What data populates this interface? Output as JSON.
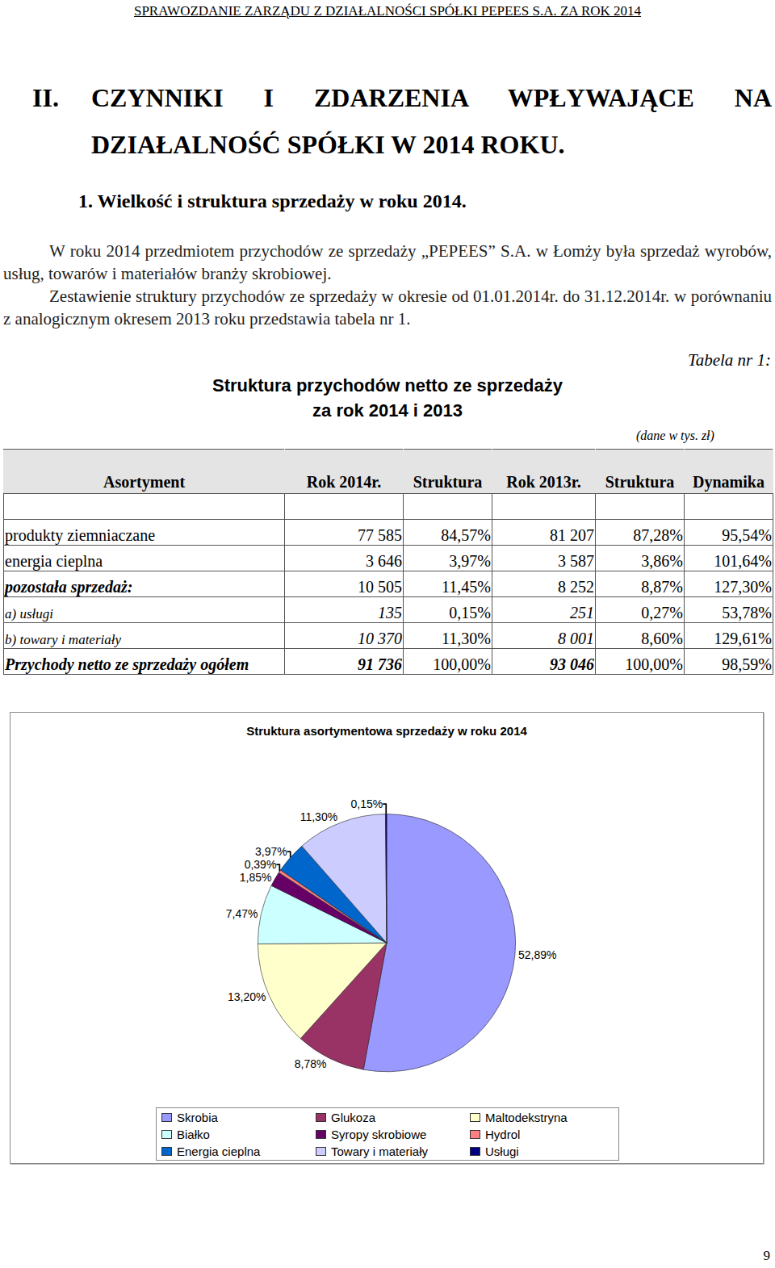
{
  "header": "SPRAWOZDANIE ZARZĄDU Z DZIAŁALNOŚCI SPÓŁKI PEPEES S.A. ZA ROK 2014",
  "section": {
    "number": "II.",
    "title": "CZYNNIKI I ZDARZENIA WPŁYWAJĄCE NA DZIAŁALNOŚĆ SPÓŁKI W 2014 ROKU."
  },
  "subsection": "1. Wielkość i struktura sprzedaży w roku 2014.",
  "paragraphs": [
    "W roku 2014 przedmiotem przychodów ze sprzedaży „PEPEES” S.A. w Łomży była sprzedaż wyrobów, usług, towarów i materiałów branży skrobiowej.",
    "Zestawienie struktury przychodów ze sprzedaży w okresie od 01.01.2014r. do 31.12.2014r. w porównaniu z analogicznym okresem 2013 roku przedstawia tabela nr 1."
  ],
  "table": {
    "caption": "Tabela nr 1:",
    "title": [
      "Struktura przychodów netto ze sprzedaży",
      "za rok 2014 i 2013"
    ],
    "unit": "(dane w tys. zł)",
    "columns": [
      "Asortyment",
      "Rok 2014r.",
      "Struktura",
      "Rok 2013r.",
      "Struktura",
      "Dynamika"
    ],
    "rows": [
      [
        "produkty ziemniaczane",
        "77 585",
        "84,57%",
        "81 207",
        "87,28%",
        "95,54%"
      ],
      [
        "energia cieplna",
        "3 646",
        "3,97%",
        "3 587",
        "3,86%",
        "101,64%"
      ],
      [
        "pozostała sprzedaż:",
        "10 505",
        "11,45%",
        "8 252",
        "8,87%",
        "127,30%"
      ],
      [
        "a)  usługi",
        "135",
        "0,15%",
        "251",
        "0,27%",
        "53,78%"
      ],
      [
        "b) towary i materiały",
        "10 370",
        "11,30%",
        "8 001",
        "8,60%",
        "129,61%"
      ],
      [
        "Przychody netto ze sprzedaży ogółem",
        "91 736",
        "100,00%",
        "93 046",
        "100,00%",
        "98,59%"
      ]
    ]
  },
  "chart_data": {
    "type": "pie",
    "title": "Struktura asortymentowa sprzedaży w roku 2014",
    "categories": [
      "Skrobia",
      "Glukoza",
      "Maltodekstryna",
      "Białko",
      "Syropy skrobiowe",
      "Hydrol",
      "Energia cieplna",
      "Towary i materiały",
      "Usługi"
    ],
    "values": [
      52.89,
      8.78,
      13.2,
      7.47,
      1.85,
      0.39,
      3.97,
      11.3,
      0.15
    ],
    "value_labels": [
      "52,89%",
      "8,78%",
      "13,20%",
      "7,47%",
      "1,85%",
      "0,39%",
      "3,97%",
      "11,30%",
      "0,15%"
    ],
    "colors": [
      "#9999ff",
      "#993366",
      "#ffffcc",
      "#ccffff",
      "#660066",
      "#ff8080",
      "#0066cc",
      "#ccccff",
      "#000080"
    ],
    "data_labels": true,
    "legend": "bottom"
  },
  "page_number": "9"
}
